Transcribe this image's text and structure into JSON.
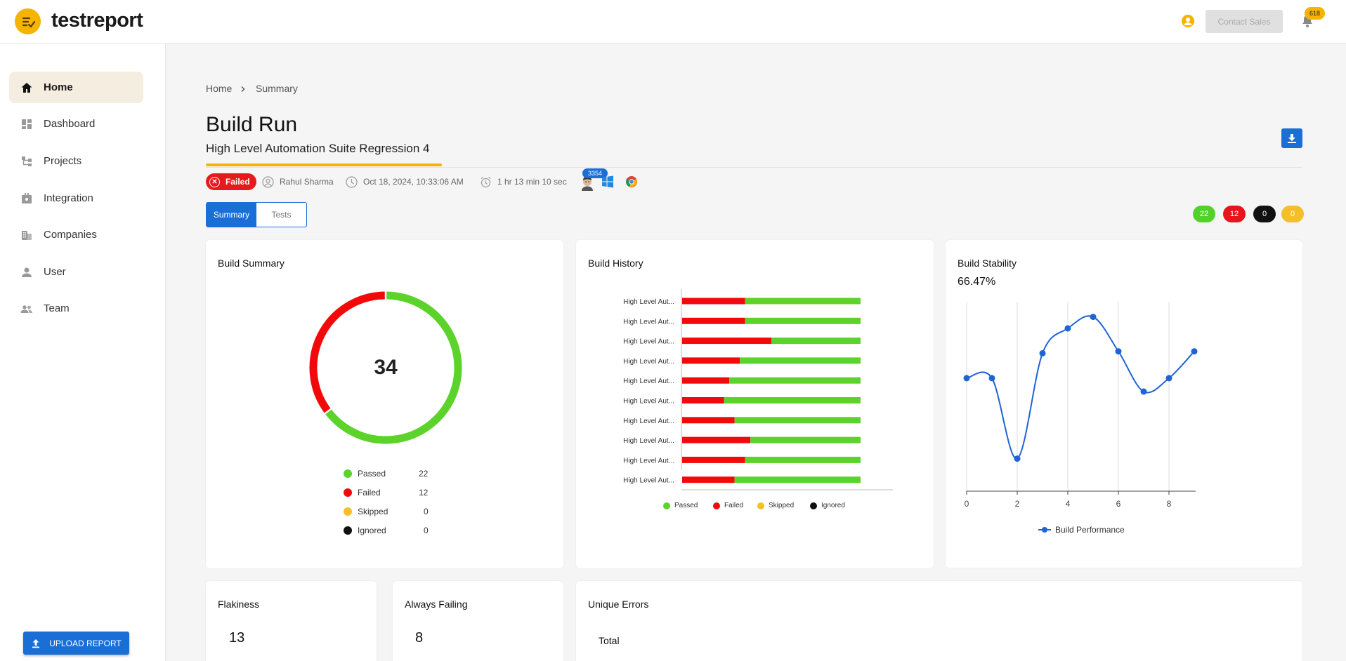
{
  "app": {
    "name": "testreport",
    "contact_label": "Contact Sales",
    "notification_count": "618"
  },
  "sidebar": {
    "items": [
      {
        "label": "Home",
        "icon": "home-icon"
      },
      {
        "label": "Dashboard",
        "icon": "dashboard-icon"
      },
      {
        "label": "Projects",
        "icon": "projects-icon"
      },
      {
        "label": "Integration",
        "icon": "integration-icon"
      },
      {
        "label": "Companies",
        "icon": "companies-icon"
      },
      {
        "label": "User",
        "icon": "user-icon"
      },
      {
        "label": "Team",
        "icon": "team-icon"
      }
    ],
    "upload_label": "UPLOAD REPORT"
  },
  "breadcrumb": {
    "home": "Home",
    "current": "Summary"
  },
  "page": {
    "title": "Build Run",
    "subtitle": "High Level Automation Suite Regression 4"
  },
  "build_meta": {
    "status": "Failed",
    "user": "Rahul Sharma",
    "date": "Oct 18, 2024, 10:33:06 AM",
    "duration": "1 hr 13 min 10 sec",
    "avatar_badge": "3354"
  },
  "tabs": [
    {
      "label": "Summary"
    },
    {
      "label": "Tests"
    }
  ],
  "counts": {
    "passed": {
      "value": "22",
      "color": "#52d12a"
    },
    "failed": {
      "value": "12",
      "color": "#e8141b"
    },
    "ignored": {
      "value": "0",
      "color": "#111111"
    },
    "skipped": {
      "value": "0",
      "color": "#f5bf2a"
    }
  },
  "build_summary": {
    "title": "Build Summary",
    "total": "34",
    "legend": [
      {
        "label": "Passed",
        "value": "22",
        "color": "#5bd32b"
      },
      {
        "label": "Failed",
        "value": "12",
        "color": "#f20a0a"
      },
      {
        "label": "Skipped",
        "value": "0",
        "color": "#f5bf2a"
      },
      {
        "label": "Ignored",
        "value": "0",
        "color": "#111111"
      }
    ]
  },
  "build_history": {
    "title": "Build History",
    "legend": [
      {
        "label": "Passed",
        "color": "#5bd32b"
      },
      {
        "label": "Failed",
        "color": "#f20a0a"
      },
      {
        "label": "Skipped",
        "color": "#f5bf2a"
      },
      {
        "label": "Ignored",
        "color": "#111111"
      }
    ]
  },
  "build_stability": {
    "title": "Build Stability",
    "percentage": "66.47%",
    "legend_label": "Build Performance"
  },
  "flakiness": {
    "title": "Flakiness",
    "value": "13"
  },
  "always_failing": {
    "title": "Always Failing",
    "value": "8"
  },
  "unique_errors": {
    "title": "Unique Errors",
    "total_label": "Total"
  },
  "chart_data": [
    {
      "type": "pie",
      "labels": [
        "Passed",
        "Failed",
        "Skipped",
        "Ignored"
      ],
      "values": [
        22,
        12,
        0,
        0
      ],
      "colors": [
        "#5bd32b",
        "#f20a0a",
        "#f5bf2a",
        "#111111"
      ],
      "center_label": "34"
    },
    {
      "type": "bar",
      "orientation": "horizontal",
      "stacked": true,
      "categories": [
        "High Level Aut...",
        "High Level Aut...",
        "High Level Aut...",
        "High Level Aut...",
        "High Level Aut...",
        "High Level Aut...",
        "High Level Aut...",
        "High Level Aut...",
        "High Level Aut...",
        "High Level Aut..."
      ],
      "series": [
        {
          "name": "Failed",
          "values": [
            12,
            12,
            17,
            11,
            9,
            8,
            10,
            13,
            12,
            10
          ],
          "color": "#f20a0a"
        },
        {
          "name": "Passed",
          "values": [
            22,
            22,
            17,
            23,
            25,
            26,
            24,
            21,
            22,
            24
          ],
          "color": "#5bd32b"
        },
        {
          "name": "Skipped",
          "values": [
            0,
            0,
            0,
            0,
            0,
            0,
            0,
            0,
            0,
            0
          ],
          "color": "#f5bf2a"
        },
        {
          "name": "Ignored",
          "values": [
            0,
            0,
            0,
            0,
            0,
            0,
            0,
            0,
            0,
            0
          ],
          "color": "#111111"
        }
      ],
      "legend": "bottom"
    },
    {
      "type": "line",
      "x": [
        0,
        1,
        2,
        3,
        4,
        5,
        6,
        7,
        8,
        9
      ],
      "series": [
        {
          "name": "Build Performance",
          "values": [
            0.59,
            0.59,
            0.17,
            0.72,
            0.85,
            0.91,
            0.73,
            0.52,
            0.59,
            0.73
          ],
          "color": "#1f63d4"
        }
      ],
      "xticks": [
        "0",
        "2",
        "4",
        "6",
        "8"
      ],
      "xlim": [
        0,
        9
      ],
      "ylim": [
        0,
        1
      ],
      "grid": "vertical",
      "legend": "bottom"
    }
  ]
}
